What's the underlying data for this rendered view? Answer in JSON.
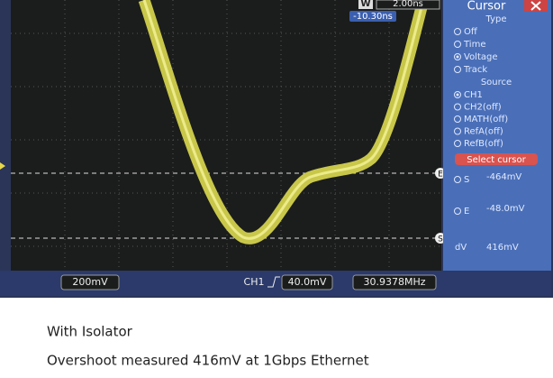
{
  "top_bar": {
    "window_label": "W",
    "timebase": "2.00ns",
    "trigger_offset": "-10.30ns"
  },
  "menu": {
    "title": "Cursor",
    "type_heading": "Type",
    "type_options": [
      "Off",
      "Time",
      "Voltage",
      "Track"
    ],
    "source_heading": "Source",
    "source_options": [
      "CH1",
      "CH2(off)",
      "MATH(off)",
      "RefA(off)",
      "RefB(off)"
    ],
    "button": "Select cursor",
    "readouts": [
      {
        "label": "S",
        "value": "-464mV"
      },
      {
        "label": "E",
        "value": "-48.0mV"
      },
      {
        "label": "dV",
        "value": "416mV"
      }
    ]
  },
  "markers": [
    "E",
    "S"
  ],
  "bottom_bar": {
    "ch1_scale": "200mV",
    "channel": "CH1",
    "trigger_level": "40.0mV",
    "frequency": "30.9378MHz"
  },
  "caption": {
    "title": "With Isolator",
    "text": "Overshoot measured 416mV at 1Gbps Ethernet"
  }
}
